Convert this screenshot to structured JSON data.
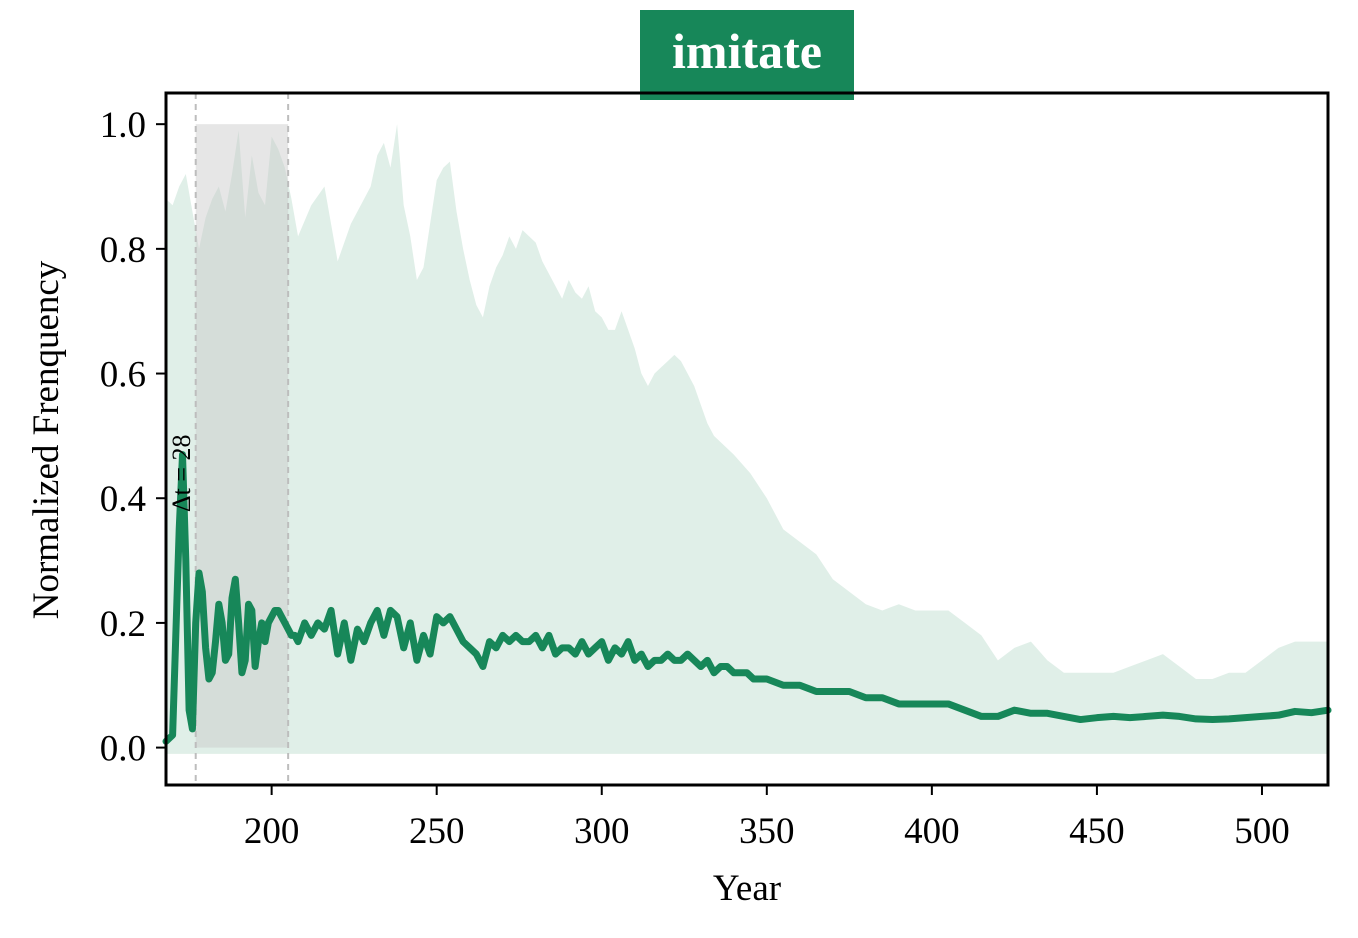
{
  "title": "imitate",
  "colors": {
    "accent": "#178759",
    "band": "#e0efe8",
    "highlight": "#c8c8c8",
    "vline": "#bdbdbd",
    "title_bg": "#178759"
  },
  "chart_data": {
    "type": "line",
    "title": "imitate",
    "xlabel": "Year",
    "ylabel": "Normalized Frenquency",
    "xlim": [
      168,
      520
    ],
    "ylim": [
      -0.06,
      1.05
    ],
    "xticks": [
      200,
      250,
      300,
      350,
      400,
      450,
      500
    ],
    "yticks": [
      0.0,
      0.2,
      0.4,
      0.6,
      0.8,
      1.0
    ],
    "ytick_labels": [
      "0.0",
      "0.2",
      "0.4",
      "0.6",
      "0.8",
      "1.0"
    ],
    "grid": false,
    "highlight_span": {
      "x_start": 177,
      "x_end": 205,
      "y_start": 0.0,
      "y_end": 1.0
    },
    "vlines": [
      177,
      205
    ],
    "annotation": {
      "text": "Δt = 28",
      "x": 171,
      "y": 0.44
    },
    "series": [
      {
        "role": "mean",
        "x": [
          168,
          170,
          172,
          173,
          174,
          175,
          176,
          177,
          178,
          179,
          180,
          181,
          182,
          183,
          184,
          185,
          186,
          187,
          188,
          189,
          190,
          191,
          192,
          193,
          194,
          195,
          196,
          197,
          198,
          199,
          200,
          201,
          202,
          203,
          204,
          205,
          206,
          207,
          208,
          210,
          212,
          214,
          216,
          218,
          220,
          222,
          224,
          226,
          228,
          230,
          232,
          234,
          236,
          238,
          240,
          242,
          244,
          246,
          248,
          250,
          252,
          254,
          256,
          258,
          260,
          262,
          264,
          266,
          268,
          270,
          272,
          274,
          276,
          278,
          280,
          282,
          284,
          286,
          288,
          290,
          292,
          294,
          296,
          298,
          300,
          302,
          304,
          306,
          308,
          310,
          312,
          314,
          316,
          318,
          320,
          322,
          324,
          326,
          328,
          330,
          332,
          334,
          336,
          338,
          340,
          342,
          344,
          346,
          348,
          350,
          355,
          360,
          365,
          370,
          375,
          380,
          385,
          390,
          395,
          400,
          405,
          410,
          415,
          420,
          425,
          430,
          435,
          440,
          445,
          450,
          455,
          460,
          465,
          470,
          475,
          480,
          485,
          490,
          495,
          500,
          505,
          510,
          515,
          520
        ],
        "values": [
          0.01,
          0.02,
          0.35,
          0.47,
          0.3,
          0.06,
          0.03,
          0.2,
          0.28,
          0.25,
          0.16,
          0.11,
          0.12,
          0.17,
          0.23,
          0.2,
          0.14,
          0.15,
          0.24,
          0.27,
          0.2,
          0.12,
          0.14,
          0.23,
          0.22,
          0.13,
          0.17,
          0.2,
          0.17,
          0.2,
          0.21,
          0.22,
          0.22,
          0.21,
          0.2,
          0.19,
          0.18,
          0.18,
          0.17,
          0.2,
          0.18,
          0.2,
          0.19,
          0.22,
          0.15,
          0.2,
          0.14,
          0.19,
          0.17,
          0.2,
          0.22,
          0.18,
          0.22,
          0.21,
          0.16,
          0.2,
          0.14,
          0.18,
          0.15,
          0.21,
          0.2,
          0.21,
          0.19,
          0.17,
          0.16,
          0.15,
          0.13,
          0.17,
          0.16,
          0.18,
          0.17,
          0.18,
          0.17,
          0.17,
          0.18,
          0.16,
          0.18,
          0.15,
          0.16,
          0.16,
          0.15,
          0.17,
          0.15,
          0.16,
          0.17,
          0.14,
          0.16,
          0.15,
          0.17,
          0.14,
          0.15,
          0.13,
          0.14,
          0.14,
          0.15,
          0.14,
          0.14,
          0.15,
          0.14,
          0.13,
          0.14,
          0.12,
          0.13,
          0.13,
          0.12,
          0.12,
          0.12,
          0.11,
          0.11,
          0.11,
          0.1,
          0.1,
          0.09,
          0.09,
          0.09,
          0.08,
          0.08,
          0.07,
          0.07,
          0.07,
          0.07,
          0.06,
          0.05,
          0.05,
          0.06,
          0.055,
          0.055,
          0.05,
          0.045,
          0.048,
          0.05,
          0.048,
          0.05,
          0.052,
          0.05,
          0.046,
          0.045,
          0.046,
          0.048,
          0.05,
          0.052,
          0.058,
          0.056,
          0.06
        ]
      },
      {
        "role": "upper",
        "x": [
          168,
          170,
          172,
          174,
          176,
          178,
          180,
          182,
          184,
          186,
          188,
          190,
          192,
          194,
          196,
          198,
          200,
          202,
          204,
          206,
          208,
          212,
          216,
          220,
          224,
          228,
          230,
          232,
          234,
          236,
          238,
          240,
          242,
          244,
          246,
          248,
          250,
          252,
          254,
          256,
          258,
          260,
          262,
          264,
          266,
          268,
          270,
          272,
          274,
          276,
          278,
          280,
          282,
          284,
          286,
          288,
          290,
          292,
          294,
          296,
          298,
          300,
          302,
          304,
          306,
          308,
          310,
          312,
          314,
          316,
          318,
          320,
          322,
          324,
          326,
          328,
          330,
          332,
          334,
          336,
          338,
          340,
          345,
          350,
          355,
          360,
          365,
          370,
          375,
          380,
          385,
          390,
          395,
          400,
          405,
          410,
          415,
          420,
          425,
          430,
          435,
          440,
          445,
          450,
          455,
          460,
          465,
          470,
          475,
          480,
          485,
          490,
          495,
          500,
          505,
          510,
          515,
          520
        ],
        "values": [
          0.88,
          0.87,
          0.9,
          0.92,
          0.86,
          0.8,
          0.85,
          0.88,
          0.9,
          0.86,
          0.92,
          0.99,
          0.85,
          0.95,
          0.89,
          0.87,
          0.98,
          0.96,
          0.93,
          0.88,
          0.82,
          0.87,
          0.9,
          0.78,
          0.84,
          0.88,
          0.9,
          0.95,
          0.97,
          0.93,
          1.0,
          0.87,
          0.82,
          0.75,
          0.77,
          0.84,
          0.91,
          0.93,
          0.94,
          0.86,
          0.8,
          0.75,
          0.71,
          0.69,
          0.74,
          0.77,
          0.79,
          0.82,
          0.8,
          0.83,
          0.82,
          0.81,
          0.78,
          0.76,
          0.74,
          0.72,
          0.75,
          0.73,
          0.72,
          0.74,
          0.7,
          0.69,
          0.67,
          0.67,
          0.7,
          0.67,
          0.64,
          0.6,
          0.58,
          0.6,
          0.61,
          0.62,
          0.63,
          0.62,
          0.6,
          0.58,
          0.55,
          0.52,
          0.5,
          0.49,
          0.48,
          0.47,
          0.44,
          0.4,
          0.35,
          0.33,
          0.31,
          0.27,
          0.25,
          0.23,
          0.22,
          0.23,
          0.22,
          0.22,
          0.22,
          0.2,
          0.18,
          0.14,
          0.16,
          0.17,
          0.14,
          0.12,
          0.12,
          0.12,
          0.12,
          0.13,
          0.14,
          0.15,
          0.13,
          0.11,
          0.11,
          0.12,
          0.12,
          0.14,
          0.16,
          0.17,
          0.17,
          0.17
        ]
      },
      {
        "role": "lower",
        "x": [
          168,
          520
        ],
        "values": [
          -0.01,
          -0.01
        ]
      }
    ]
  }
}
